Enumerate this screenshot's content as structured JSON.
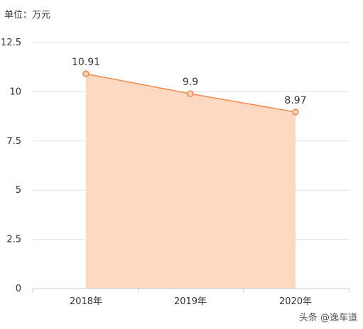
{
  "unit_label": "单位：万元",
  "watermark": "头条 @逸车道",
  "chart_data": {
    "type": "area",
    "categories": [
      "2018年",
      "2019年",
      "2020年"
    ],
    "series": [
      {
        "values": [
          10.91,
          9.9,
          8.97
        ]
      }
    ],
    "data_labels": [
      "10.91",
      "9.9",
      "8.97"
    ],
    "y_ticks": [
      "0",
      "2.5",
      "5",
      "7.5",
      "10",
      "12.5"
    ],
    "y_tick_values": [
      0,
      2.5,
      5,
      7.5,
      10,
      12.5
    ],
    "ylim": [
      0,
      12.5
    ],
    "grid": true,
    "legend": "none",
    "colors": {
      "line": "#f08a4b",
      "fill": "#fdd9c2",
      "marker_fill": "#fcd3b4",
      "grid": "#e3e3e3",
      "axis": "#cccccc",
      "text": "#333333"
    }
  }
}
